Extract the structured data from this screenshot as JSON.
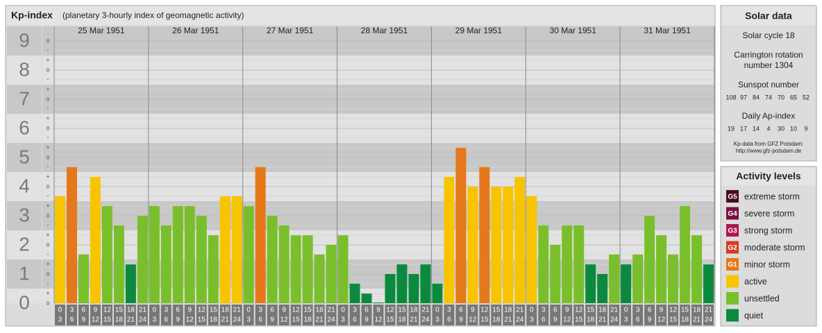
{
  "chart_data": {
    "type": "bar",
    "title": "Kp-index",
    "subtitle": "(planetary 3-hourly index of geomagnetic activity)",
    "days": [
      "25 Mar 1951",
      "26 Mar 1951",
      "27 Mar 1951",
      "28 Mar 1951",
      "29 Mar 1951",
      "30 Mar 1951",
      "31 Mar 1951"
    ],
    "hours": [
      [
        "0",
        "3"
      ],
      [
        "3",
        "6"
      ],
      [
        "6",
        "9"
      ],
      [
        "9",
        "12"
      ],
      [
        "12",
        "15"
      ],
      [
        "15",
        "18"
      ],
      [
        "18",
        "21"
      ],
      [
        "21",
        "24"
      ]
    ],
    "values": [
      3.67,
      4.67,
      1.67,
      4.33,
      3.33,
      2.67,
      1.33,
      3,
      3.33,
      2.67,
      3.33,
      3.33,
      3,
      2.33,
      3.67,
      3.67,
      3.33,
      4.67,
      3,
      2.67,
      2.33,
      2.33,
      1.67,
      2,
      2.33,
      0.67,
      0.33,
      0,
      1,
      1.33,
      1,
      1.33,
      0.67,
      4.33,
      5.33,
      4,
      4.67,
      4,
      4,
      4.33,
      3.67,
      2.67,
      2,
      2.67,
      2.67,
      1.33,
      1,
      1.67,
      1.33,
      1.67,
      3,
      2.33,
      1.67,
      3.33,
      2.33,
      1.33
    ],
    "colors": [
      "#f7c400",
      "#e5781a",
      "#79bf2b",
      "#f7c400",
      "#79bf2b",
      "#79bf2b",
      "#0b8a3e",
      "#79bf2b",
      "#79bf2b",
      "#79bf2b",
      "#79bf2b",
      "#79bf2b",
      "#79bf2b",
      "#79bf2b",
      "#f7c400",
      "#f7c400",
      "#79bf2b",
      "#e5781a",
      "#79bf2b",
      "#79bf2b",
      "#79bf2b",
      "#79bf2b",
      "#79bf2b",
      "#79bf2b",
      "#79bf2b",
      "#0b8a3e",
      "#0b8a3e",
      "#0b8a3e",
      "#0b8a3e",
      "#0b8a3e",
      "#0b8a3e",
      "#0b8a3e",
      "#0b8a3e",
      "#f7c400",
      "#e5781a",
      "#f7c400",
      "#e5781a",
      "#f7c400",
      "#f7c400",
      "#f7c400",
      "#f7c400",
      "#79bf2b",
      "#79bf2b",
      "#79bf2b",
      "#79bf2b",
      "#0b8a3e",
      "#0b8a3e",
      "#79bf2b",
      "#0b8a3e",
      "#79bf2b",
      "#79bf2b",
      "#79bf2b",
      "#79bf2b",
      "#79bf2b",
      "#79bf2b",
      "#0b8a3e"
    ],
    "ylim": [
      0,
      9.5
    ],
    "yticks": [
      0,
      1,
      2,
      3,
      4,
      5,
      6,
      7,
      8,
      9
    ],
    "minor_ticks": [
      {
        "value": 0,
        "label": "o"
      },
      {
        "value": 0.33,
        "label": "+"
      },
      {
        "value": 0.67,
        "label": "-"
      },
      {
        "value": 1,
        "label": "o"
      },
      {
        "value": 1.33,
        "label": "+"
      },
      {
        "value": 1.67,
        "label": "-"
      },
      {
        "value": 2,
        "label": "o"
      },
      {
        "value": 2.33,
        "label": "+"
      },
      {
        "value": 2.67,
        "label": "-"
      },
      {
        "value": 3,
        "label": "o"
      },
      {
        "value": 3.33,
        "label": "+"
      },
      {
        "value": 3.67,
        "label": "-"
      },
      {
        "value": 4,
        "label": "o"
      },
      {
        "value": 4.33,
        "label": "+"
      },
      {
        "value": 4.67,
        "label": "-"
      },
      {
        "value": 5,
        "label": "o"
      },
      {
        "value": 5.33,
        "label": "+"
      },
      {
        "value": 5.67,
        "label": "-"
      },
      {
        "value": 6,
        "label": "o"
      },
      {
        "value": 6.33,
        "label": "+"
      },
      {
        "value": 6.67,
        "label": "-"
      },
      {
        "value": 7,
        "label": "o"
      },
      {
        "value": 7.33,
        "label": "+"
      },
      {
        "value": 7.67,
        "label": "-"
      },
      {
        "value": 8,
        "label": "o"
      },
      {
        "value": 8.33,
        "label": "+"
      },
      {
        "value": 8.67,
        "label": "-"
      },
      {
        "value": 9,
        "label": "o"
      }
    ],
    "grid": true
  },
  "solar_data": {
    "title": "Solar data",
    "cycle": "Solar cycle 18",
    "carrington": [
      "Carrington rotation",
      "number 1304"
    ],
    "sunspot_title": "Sunspot number",
    "sunspot": [
      108,
      97,
      84,
      74,
      70,
      65,
      52
    ],
    "ap_title": "Daily Ap-index",
    "ap": [
      19,
      17,
      14,
      4,
      30,
      10,
      9
    ],
    "source": [
      "Kp-data from GFZ Potsdam:",
      "http://www.gfz-potsdam.de"
    ]
  },
  "activity_levels": {
    "title": "Activity levels",
    "items": [
      {
        "badge": "G5",
        "label": "extreme storm",
        "color": "#4a0a24"
      },
      {
        "badge": "G4",
        "label": "severe storm",
        "color": "#7a0f45"
      },
      {
        "badge": "G3",
        "label": "strong storm",
        "color": "#b0154f"
      },
      {
        "badge": "G2",
        "label": "moderate storm",
        "color": "#d63a25"
      },
      {
        "badge": "G1",
        "label": "minor storm",
        "color": "#e5781a"
      },
      {
        "badge": null,
        "label": "active",
        "color": "#f7c400"
      },
      {
        "badge": null,
        "label": "unsettled",
        "color": "#79bf2b"
      },
      {
        "badge": null,
        "label": "quiet",
        "color": "#0b8a3e"
      }
    ]
  }
}
